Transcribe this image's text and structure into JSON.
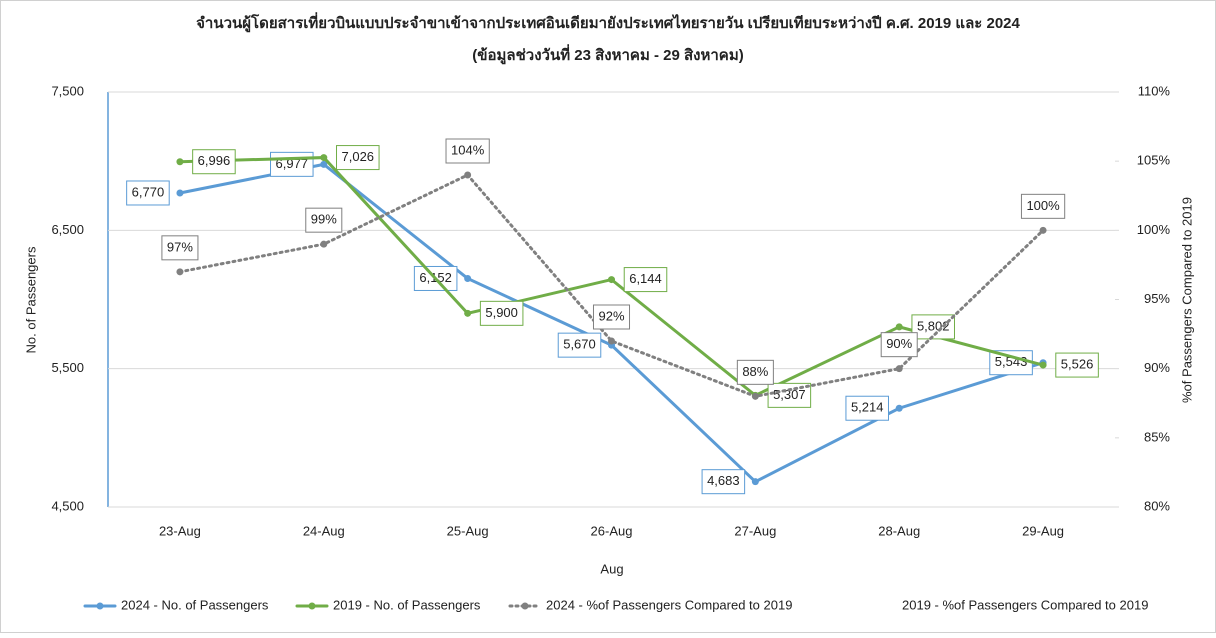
{
  "chart_data": {
    "type": "line",
    "title": "จำนวนผู้โดยสารเที่ยวบินแบบประจำขาเข้าจากประเทศอินเดียมายังประเทศไทยรายวัน  เปรียบเทียบระหว่างปี  ค.ศ. 2019 และ 2024",
    "subtitle": "(ข้อมูลช่วงวันที่ 23 สิงหาคม - 29 สิงหาคม)",
    "x_label": "Aug",
    "y_label": "No. of Passengers",
    "y2_label": "%of Passengers Compared to 2019",
    "categories": [
      "23-Aug",
      "24-Aug",
      "25-Aug",
      "26-Aug",
      "27-Aug",
      "28-Aug",
      "29-Aug"
    ],
    "ylim": [
      4500,
      7500
    ],
    "yticks": [
      {
        "value": 4500,
        "label": "4,500"
      },
      {
        "value": 5500,
        "label": "5,500"
      },
      {
        "value": 6500,
        "label": "6,500"
      },
      {
        "value": 7500,
        "label": "7,500"
      }
    ],
    "y2lim": [
      80,
      110
    ],
    "y2ticks": [
      {
        "value": 80,
        "label": "80%"
      },
      {
        "value": 85,
        "label": "85%"
      },
      {
        "value": 90,
        "label": "90%"
      },
      {
        "value": 95,
        "label": "95%"
      },
      {
        "value": 100,
        "label": "100%"
      },
      {
        "value": 105,
        "label": "105%"
      },
      {
        "value": 110,
        "label": "110%"
      }
    ],
    "grid": true,
    "legend": "bottom",
    "series": [
      {
        "name": "2024 - No. of Passengers",
        "color": "#5b9bd5",
        "style": "solid",
        "values": [
          6770,
          6977,
          6152,
          5670,
          4683,
          5214,
          5543
        ],
        "value_labels": [
          "6,770",
          "6,977",
          "6,152",
          "5,670",
          "4,683",
          "5,214",
          "5,543"
        ]
      },
      {
        "name": "2019 - No. of Passengers",
        "color": "#70ad47",
        "style": "solid",
        "values": [
          6996,
          7026,
          5900,
          6144,
          5307,
          5802,
          5526
        ],
        "value_labels": [
          "6,996",
          "7,026",
          "5,900",
          "6,144",
          "5,307",
          "5,802",
          "5,526"
        ]
      },
      {
        "name": "2024 - %of Passengers Compared to 2019",
        "color": "#808080",
        "style": "dotted",
        "axis": "y2",
        "values": [
          97,
          99,
          104,
          92,
          88,
          90,
          100
        ],
        "value_labels": [
          "97%",
          "99%",
          "104%",
          "92%",
          "88%",
          "90%",
          "100%"
        ]
      },
      {
        "name": "2019 - %of Passengers Compared to 2019",
        "axis": "y2",
        "values": [
          null,
          null,
          null,
          null,
          null,
          null,
          null
        ]
      }
    ]
  }
}
